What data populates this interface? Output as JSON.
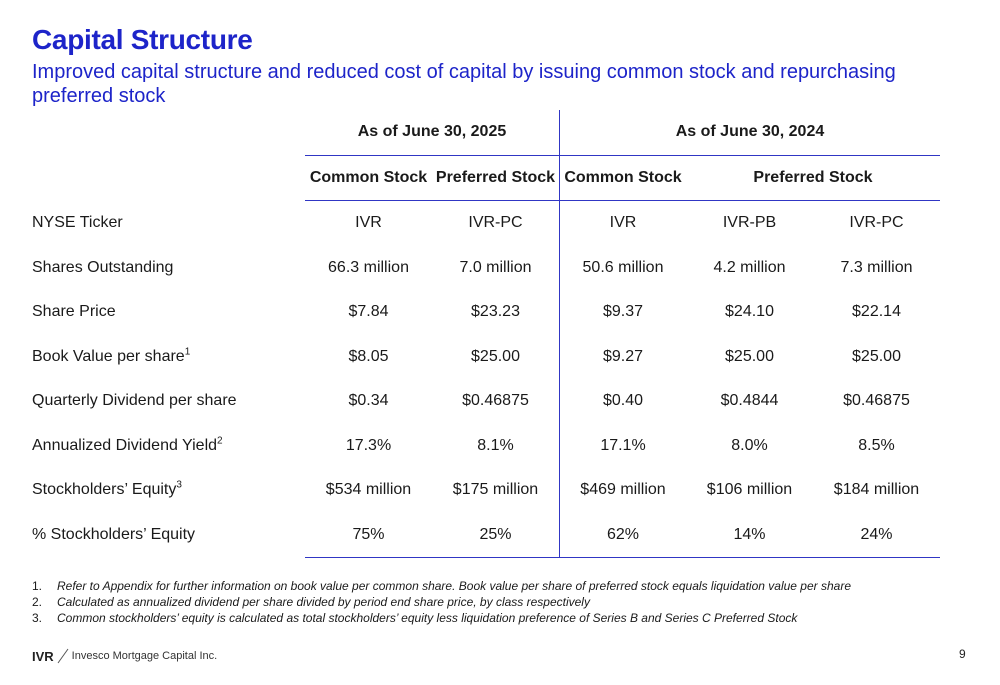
{
  "slide": {
    "title": "Capital Structure",
    "subtitle": "Improved capital structure and reduced cost of capital by issuing common stock and repurchasing preferred stock",
    "page_number": "9"
  },
  "table": {
    "groups": [
      "As of June 30, 2025",
      "As of June 30, 2024"
    ],
    "subheaders": [
      "Common Stock",
      "Preferred Stock",
      "Common Stock",
      "Preferred Stock"
    ],
    "rows": [
      {
        "label": "NYSE Ticker",
        "sup": "",
        "values": [
          "IVR",
          "IVR-PC",
          "IVR",
          "IVR-PB",
          "IVR-PC"
        ]
      },
      {
        "label": "Shares Outstanding",
        "sup": "",
        "values": [
          "66.3 million",
          "7.0 million",
          "50.6 million",
          "4.2 million",
          "7.3 million"
        ]
      },
      {
        "label": "Share Price",
        "sup": "",
        "values": [
          "$7.84",
          "$23.23",
          "$9.37",
          "$24.10",
          "$22.14"
        ]
      },
      {
        "label": "Book Value per share",
        "sup": "1",
        "values": [
          "$8.05",
          "$25.00",
          "$9.27",
          "$25.00",
          "$25.00"
        ]
      },
      {
        "label": "Quarterly Dividend per share",
        "sup": "",
        "values": [
          "$0.34",
          "$0.46875",
          "$0.40",
          "$0.4844",
          "$0.46875"
        ]
      },
      {
        "label": "Annualized Dividend Yield",
        "sup": "2",
        "values": [
          "17.3%",
          "8.1%",
          "17.1%",
          "8.0%",
          "8.5%"
        ]
      },
      {
        "label": "Stockholders’ Equity",
        "sup": "3",
        "values": [
          "$534 million",
          "$175 million",
          "$469 million",
          "$106 million",
          "$184 million"
        ]
      },
      {
        "label": "% Stockholders’ Equity",
        "sup": "",
        "values": [
          "75%",
          "25%",
          "62%",
          "14%",
          "24%"
        ]
      }
    ]
  },
  "footnotes": [
    {
      "num": "1.",
      "text": "Refer to Appendix for further information on book value per common share.  Book value per share of preferred stock equals liquidation value per share"
    },
    {
      "num": "2.",
      "text": "Calculated as annualized dividend per share divided by period end share price, by class respectively"
    },
    {
      "num": "3.",
      "text": "Common stockholders’ equity is calculated as total stockholders’ equity less liquidation preference of Series B and Series C Preferred Stock"
    }
  ],
  "footer": {
    "ticker": "IVR",
    "company": "Invesco Mortgage Capital Inc."
  },
  "colors": {
    "accent": "#1d24c9",
    "rule": "#3036c4"
  }
}
